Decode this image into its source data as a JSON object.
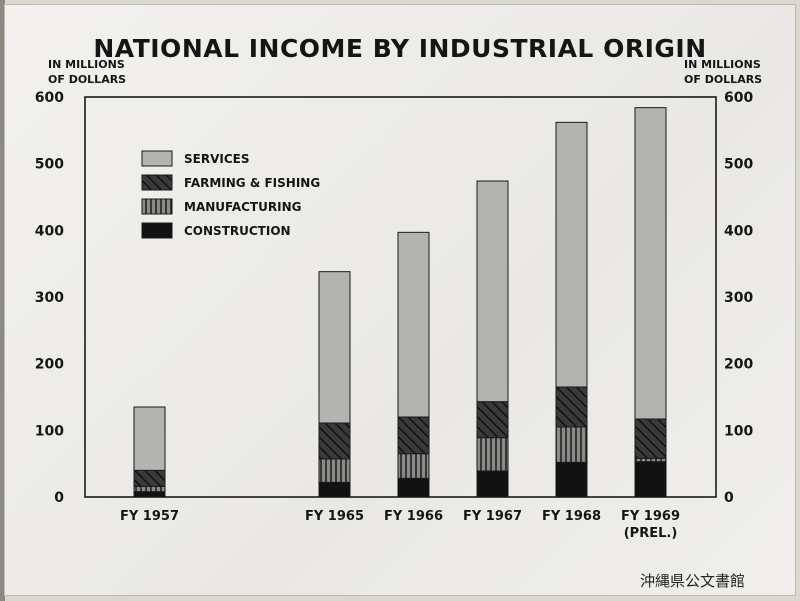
{
  "title": "NATIONAL INCOME BY INDUSTRIAL ORIGIN",
  "y_unit_left": "IN MILLIONS OF DOLLARS",
  "y_unit_right": "IN MILLIONS OF DOLLARS",
  "archive_mark": "沖縄県公文書館",
  "colors": {
    "services": "#b3b3b1",
    "farming_fishing": "#2a2a2a",
    "manufacturing": "#5a5a58",
    "construction": "#121212"
  },
  "chart_data": {
    "type": "bar",
    "stacked": true,
    "title": "NATIONAL INCOME BY INDUSTRIAL ORIGIN",
    "ylabel": "IN MILLIONS OF DOLLARS",
    "ylim": [
      0,
      600
    ],
    "yticks": [
      "0",
      "100",
      "200",
      "300",
      "400",
      "500",
      "600"
    ],
    "legend_position": "top-left",
    "categories": [
      {
        "line1": "FY 1957",
        "line2": ""
      },
      {
        "line1": "FY 1965",
        "line2": ""
      },
      {
        "line1": "FY 1966",
        "line2": ""
      },
      {
        "line1": "FY 1967",
        "line2": ""
      },
      {
        "line1": "FY 1968",
        "line2": ""
      },
      {
        "line1": "FY 1969",
        "line2": "(PREL.)"
      }
    ],
    "series": [
      {
        "name": "CONSTRUCTION",
        "pattern": "solid",
        "values": [
          8,
          22,
          28,
          39,
          52,
          53
        ]
      },
      {
        "name": "MANUFACTURING",
        "pattern": "vertical",
        "values": [
          8,
          35,
          37,
          50,
          53,
          5
        ]
      },
      {
        "name": "FARMING & FISHING",
        "pattern": "diagonal",
        "values": [
          24,
          54,
          55,
          54,
          60,
          59
        ]
      },
      {
        "name": "SERVICES",
        "pattern": "light",
        "values": [
          95,
          227,
          277,
          331,
          397,
          467
        ]
      }
    ],
    "legend_order": [
      "SERVICES",
      "FARMING & FISHING",
      "MANUFACTURING",
      "CONSTRUCTION"
    ]
  }
}
